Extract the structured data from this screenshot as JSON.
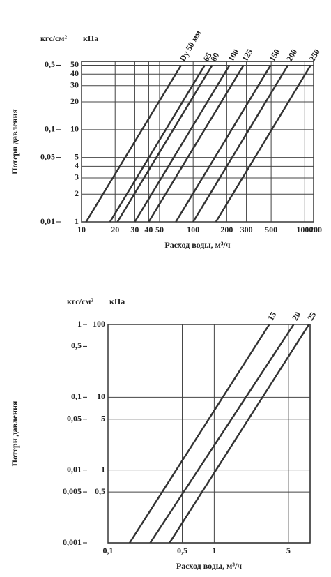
{
  "chart_data": [
    {
      "type": "line",
      "xlabel": "Расход воды, м³/ч",
      "ylabel": "Потери давления",
      "y_unit": "кПа",
      "y2_unit": "кгс/см²",
      "xlog": true,
      "ylog": true,
      "grid": true,
      "color": "#333333",
      "xlim": [
        10,
        1200
      ],
      "ylim": [
        1,
        55
      ],
      "y2lim": [
        0.01,
        0.55
      ],
      "xticks": [
        10,
        20,
        30,
        40,
        50,
        100,
        200,
        300,
        500,
        1000,
        1200
      ],
      "yticks": [
        1,
        2,
        3,
        4,
        5,
        10,
        20,
        30,
        40,
        50
      ],
      "y2ticks": [
        {
          "value": 0.01,
          "label": "0,01"
        },
        {
          "value": 0.05,
          "label": "0,05"
        },
        {
          "value": 0.1,
          "label": "0,1"
        },
        {
          "value": 0.5,
          "label": "0,5"
        }
      ],
      "series": [
        {
          "name": "Dy 50 мм",
          "x": [
            11,
            78
          ],
          "values": [
            1,
            50
          ]
        },
        {
          "name": "65",
          "x": [
            18,
            127
          ],
          "values": [
            1,
            50
          ]
        },
        {
          "name": "80",
          "x": [
            21,
            148
          ],
          "values": [
            1,
            50
          ]
        },
        {
          "name": "100",
          "x": [
            30,
            212
          ],
          "values": [
            1,
            50
          ]
        },
        {
          "name": "125",
          "x": [
            40,
            283
          ],
          "values": [
            1,
            50
          ]
        },
        {
          "name": "150",
          "x": [
            70,
            495
          ],
          "values": [
            1,
            50
          ]
        },
        {
          "name": "200",
          "x": [
            100,
            707
          ],
          "values": [
            1,
            50
          ]
        },
        {
          "name": "250",
          "x": [
            160,
            1130
          ],
          "values": [
            1,
            50
          ]
        }
      ]
    },
    {
      "type": "line",
      "xlabel": "Расход воды, м³/ч",
      "ylabel": "Потери давления",
      "y_unit": "кПа",
      "y2_unit": "кгс/см²",
      "xlog": true,
      "ylog": true,
      "grid": true,
      "color": "#333333",
      "xlim": [
        0.1,
        8
      ],
      "ylim": [
        0.1,
        100
      ],
      "y2lim": [
        0.001,
        1
      ],
      "xticks": [
        {
          "value": 0.1,
          "label": "0,1"
        },
        {
          "value": 0.5,
          "label": "0,5"
        },
        1,
        5
      ],
      "yticks": [
        {
          "value": 0.5,
          "label": "0,5"
        },
        1,
        5,
        10,
        100
      ],
      "y2ticks": [
        {
          "value": 0.001,
          "label": "0,001"
        },
        {
          "value": 0.005,
          "label": "0,005"
        },
        {
          "value": 0.01,
          "label": "0,01"
        },
        {
          "value": 0.05,
          "label": "0,05"
        },
        {
          "value": 0.1,
          "label": "0,1"
        },
        {
          "value": 0.5,
          "label": "0,5"
        },
        1
      ],
      "series": [
        {
          "name": "15",
          "x": [
            0.16,
            3.3
          ],
          "values": [
            0.1,
            100
          ]
        },
        {
          "name": "20",
          "x": [
            0.25,
            5.6
          ],
          "values": [
            0.1,
            100
          ]
        },
        {
          "name": "25",
          "x": [
            0.38,
            7.8
          ],
          "values": [
            0.1,
            100
          ]
        }
      ]
    }
  ]
}
